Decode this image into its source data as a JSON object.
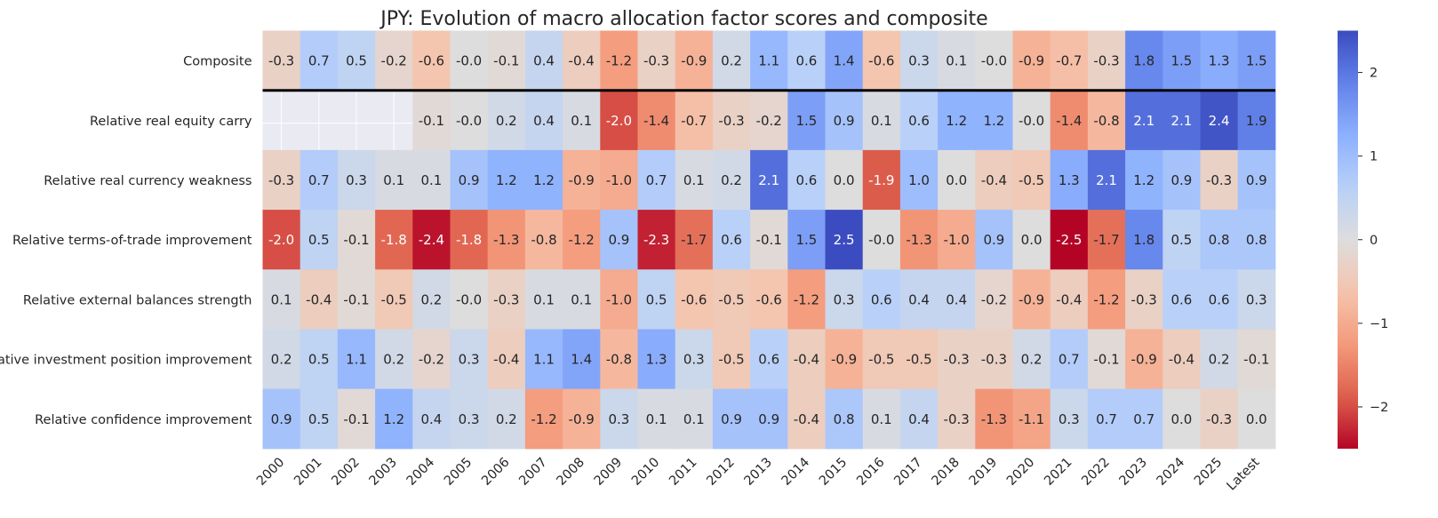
{
  "chart_data": {
    "type": "heatmap",
    "title": "JPY: Evolution of macro allocation factor scores and composite",
    "xlabel": "",
    "ylabel": "",
    "colormap": "coolwarm",
    "vmin": -2.5,
    "vmax": 2.5,
    "columns": [
      "2000",
      "2001",
      "2002",
      "2003",
      "2004",
      "2005",
      "2006",
      "2007",
      "2008",
      "2009",
      "2010",
      "2011",
      "2012",
      "2013",
      "2014",
      "2015",
      "2016",
      "2017",
      "2018",
      "2019",
      "2020",
      "2021",
      "2022",
      "2023",
      "2024",
      "2025",
      "Latest"
    ],
    "rows": [
      "Composite",
      "Relative real equity carry",
      "Relative real currency weakness",
      "Relative terms-of-trade improvement",
      "Relative external balances strength",
      "Relative investment position improvement",
      "Relative confidence improvement"
    ],
    "values": [
      [
        -0.3,
        0.7,
        0.5,
        -0.2,
        -0.6,
        -0.0,
        -0.1,
        0.4,
        -0.4,
        -1.2,
        -0.3,
        -0.9,
        0.2,
        1.1,
        0.6,
        1.4,
        -0.6,
        0.3,
        0.1,
        -0.0,
        -0.9,
        -0.7,
        -0.3,
        1.8,
        1.5,
        1.3,
        1.5
      ],
      [
        null,
        null,
        null,
        null,
        -0.1,
        -0.0,
        0.2,
        0.4,
        0.1,
        -2.0,
        -1.4,
        -0.7,
        -0.3,
        -0.2,
        1.5,
        0.9,
        0.1,
        0.6,
        1.2,
        1.2,
        -0.0,
        -1.4,
        -0.8,
        2.1,
        2.1,
        2.4,
        1.9
      ],
      [
        -0.3,
        0.7,
        0.3,
        0.1,
        0.1,
        0.9,
        1.2,
        1.2,
        -0.9,
        -1.0,
        0.7,
        0.1,
        0.2,
        2.1,
        0.6,
        0.0,
        -1.9,
        1.0,
        0.0,
        -0.4,
        -0.5,
        1.3,
        2.1,
        1.2,
        0.9,
        -0.3,
        0.9
      ],
      [
        -2.0,
        0.5,
        -0.1,
        -1.8,
        -2.4,
        -1.8,
        -1.3,
        -0.8,
        -1.2,
        0.9,
        -2.3,
        -1.7,
        0.6,
        -0.1,
        1.5,
        2.5,
        -0.0,
        -1.3,
        -1.0,
        0.9,
        0.0,
        -2.5,
        -1.7,
        1.8,
        0.5,
        0.8,
        0.8
      ],
      [
        0.1,
        -0.4,
        -0.1,
        -0.5,
        0.2,
        -0.0,
        -0.3,
        0.1,
        0.1,
        -1.0,
        0.5,
        -0.6,
        -0.5,
        -0.6,
        -1.2,
        0.3,
        0.6,
        0.4,
        0.4,
        -0.2,
        -0.9,
        -0.4,
        -1.2,
        -0.3,
        0.6,
        0.6,
        0.3
      ],
      [
        0.2,
        0.5,
        1.1,
        0.2,
        -0.2,
        0.3,
        -0.4,
        1.1,
        1.4,
        -0.8,
        1.3,
        0.3,
        -0.5,
        0.6,
        -0.4,
        -0.9,
        -0.5,
        -0.5,
        -0.3,
        -0.3,
        0.2,
        0.7,
        -0.1,
        -0.9,
        -0.4,
        0.2,
        -0.1
      ],
      [
        0.9,
        0.5,
        -0.1,
        1.2,
        0.4,
        0.3,
        0.2,
        -1.2,
        -0.9,
        0.3,
        0.1,
        0.1,
        0.9,
        0.9,
        -0.4,
        0.8,
        0.1,
        0.4,
        -0.3,
        -1.3,
        -1.1,
        0.3,
        0.7,
        0.7,
        0.0,
        -0.3,
        0.0
      ]
    ],
    "colorbar_ticks": [
      2,
      1,
      0,
      -1,
      -2
    ],
    "colorbar_tick_labels": [
      "2",
      "1",
      "0",
      "−1",
      "−2"
    ],
    "separator_after_row": "Composite",
    "missing_cell_color": "#eaeaf2",
    "grid": false
  }
}
